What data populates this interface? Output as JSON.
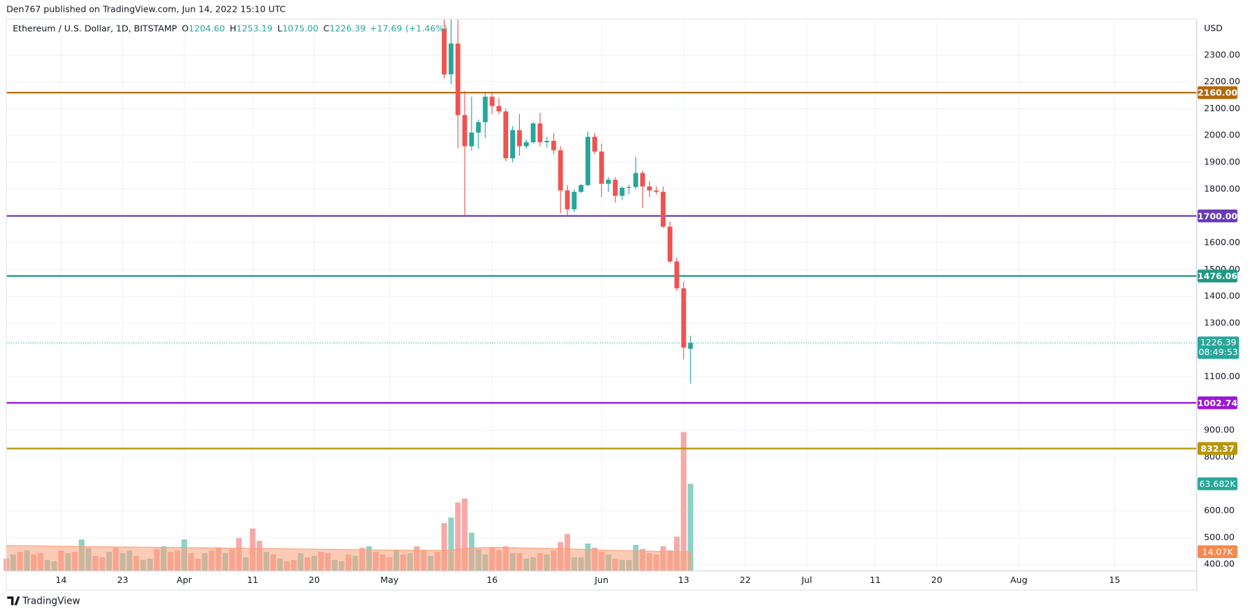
{
  "header": {
    "text": "Den767 published on TradingView.com, Jun 14, 2022 15:10 UTC"
  },
  "chart_data": {
    "type": "candlestick",
    "legend": {
      "symbol": "Ethereum / U.S. Dollar, 1D, BITSTAMP",
      "ohlc_letters": [
        "O",
        "H",
        "L",
        "C"
      ],
      "ohlc": [
        {
          "value": 1204.6,
          "label": "1204.60"
        },
        {
          "value": 1253.19,
          "label": "1253.19"
        },
        {
          "value": 1075,
          "label": "1075.00"
        },
        {
          "value": 1226.39,
          "label": "1226.39"
        }
      ],
      "change": {
        "value": 17.69,
        "label": "+17.69"
      },
      "change_pct": {
        "value": 1.46,
        "label": "(+1.46%)"
      }
    },
    "currency": "USD",
    "up_color": "#26a69a",
    "down_color": "#ef5350",
    "x": [
      "2022-03-06",
      "2022-03-07",
      "2022-03-08",
      "2022-03-09",
      "2022-03-10",
      "2022-03-11",
      "2022-03-12",
      "2022-03-13",
      "2022-03-14",
      "2022-03-15",
      "2022-03-16",
      "2022-03-17",
      "2022-03-18",
      "2022-03-19",
      "2022-03-20",
      "2022-03-21",
      "2022-03-22",
      "2022-03-23",
      "2022-03-24",
      "2022-03-25",
      "2022-03-26",
      "2022-03-27",
      "2022-03-28",
      "2022-03-29",
      "2022-03-30",
      "2022-03-31",
      "2022-04-01",
      "2022-04-02",
      "2022-04-03",
      "2022-04-04",
      "2022-04-05",
      "2022-04-06",
      "2022-04-07",
      "2022-04-08",
      "2022-04-09",
      "2022-04-10",
      "2022-04-11",
      "2022-04-12",
      "2022-04-13",
      "2022-04-14",
      "2022-04-15",
      "2022-04-16",
      "2022-04-17",
      "2022-04-18",
      "2022-04-19",
      "2022-04-20",
      "2022-04-21",
      "2022-04-22",
      "2022-04-23",
      "2022-04-24",
      "2022-04-25",
      "2022-04-26",
      "2022-04-27",
      "2022-04-28",
      "2022-04-29",
      "2022-04-30",
      "2022-05-01",
      "2022-05-02",
      "2022-05-03",
      "2022-05-04",
      "2022-05-05",
      "2022-05-06",
      "2022-05-07",
      "2022-05-08",
      "2022-05-09",
      "2022-05-10",
      "2022-05-11",
      "2022-05-12",
      "2022-05-13",
      "2022-05-14",
      "2022-05-15",
      "2022-05-16",
      "2022-05-17",
      "2022-05-18",
      "2022-05-19",
      "2022-05-20",
      "2022-05-21",
      "2022-05-22",
      "2022-05-23",
      "2022-05-24",
      "2022-05-25",
      "2022-05-26",
      "2022-05-27",
      "2022-05-28",
      "2022-05-29",
      "2022-05-30",
      "2022-05-31",
      "2022-06-01",
      "2022-06-02",
      "2022-06-03",
      "2022-06-04",
      "2022-06-05",
      "2022-06-06",
      "2022-06-07",
      "2022-06-08",
      "2022-06-09",
      "2022-06-10",
      "2022-06-11",
      "2022-06-12",
      "2022-06-13",
      "2022-06-14"
    ],
    "open": [
      null,
      null,
      null,
      null,
      null,
      null,
      null,
      null,
      null,
      null,
      null,
      null,
      null,
      null,
      null,
      null,
      null,
      null,
      null,
      null,
      null,
      null,
      null,
      null,
      null,
      null,
      null,
      null,
      null,
      null,
      null,
      null,
      null,
      null,
      null,
      null,
      null,
      null,
      null,
      null,
      null,
      null,
      null,
      null,
      null,
      null,
      null,
      null,
      null,
      null,
      null,
      null,
      null,
      null,
      null,
      null,
      null,
      null,
      null,
      null,
      null,
      null,
      null,
      null,
      2398,
      2228,
      2343,
      2076,
      1960,
      2011,
      2050,
      2145,
      2110,
      2090,
      1915,
      2020,
      1960,
      1975,
      2045,
      1975,
      1980,
      1945,
      1795,
      1725,
      1790,
      1815,
      1995,
      1940,
      1820,
      1835,
      1775,
      1805,
      1808,
      1860,
      1810,
      1795,
      1790,
      1660,
      1530,
      1430,
      1204.6
    ],
    "high": [
      null,
      null,
      null,
      null,
      null,
      null,
      null,
      null,
      null,
      null,
      null,
      null,
      null,
      null,
      null,
      null,
      null,
      null,
      null,
      null,
      null,
      null,
      null,
      null,
      null,
      null,
      null,
      null,
      null,
      null,
      null,
      null,
      null,
      null,
      null,
      null,
      null,
      null,
      null,
      null,
      null,
      null,
      null,
      null,
      null,
      null,
      null,
      null,
      null,
      null,
      null,
      null,
      null,
      null,
      null,
      null,
      null,
      null,
      null,
      null,
      null,
      null,
      null,
      null,
      2463,
      2456,
      2449,
      2166,
      2145,
      2060,
      2160,
      2160,
      2140,
      2100,
      2035,
      2080,
      1985,
      2050,
      2085,
      1995,
      2010,
      1960,
      1815,
      1800,
      1820,
      2015,
      2010,
      1970,
      1845,
      1845,
      1810,
      1815,
      1920,
      1870,
      1830,
      1810,
      1810,
      1680,
      1545,
      1455,
      1253.19
    ],
    "low": [
      null,
      null,
      null,
      null,
      null,
      null,
      null,
      null,
      null,
      null,
      null,
      null,
      null,
      null,
      null,
      null,
      null,
      null,
      null,
      null,
      null,
      null,
      null,
      null,
      null,
      null,
      null,
      null,
      null,
      null,
      null,
      null,
      null,
      null,
      null,
      null,
      null,
      null,
      null,
      null,
      null,
      null,
      null,
      null,
      null,
      null,
      null,
      null,
      null,
      null,
      null,
      null,
      null,
      null,
      null,
      null,
      null,
      null,
      null,
      null,
      null,
      null,
      null,
      null,
      2213,
      2190,
      1952,
      1701,
      1944,
      1950,
      1990,
      2080,
      2080,
      1905,
      1900,
      1925,
      1950,
      1970,
      1960,
      1955,
      1930,
      1710,
      1700,
      1715,
      1785,
      1810,
      1930,
      1770,
      1790,
      1750,
      1760,
      1780,
      1800,
      1730,
      1770,
      1780,
      1655,
      1525,
      1420,
      1165,
      1075
    ],
    "close": [
      null,
      null,
      null,
      null,
      null,
      null,
      null,
      null,
      null,
      null,
      null,
      null,
      null,
      null,
      null,
      null,
      null,
      null,
      null,
      null,
      null,
      null,
      null,
      null,
      null,
      null,
      null,
      null,
      null,
      null,
      null,
      null,
      null,
      null,
      null,
      null,
      null,
      null,
      null,
      null,
      null,
      null,
      null,
      null,
      null,
      null,
      null,
      null,
      null,
      null,
      null,
      null,
      null,
      null,
      null,
      null,
      null,
      null,
      null,
      null,
      null,
      null,
      null,
      null,
      2228,
      2343,
      2076,
      1960,
      2011,
      2050,
      2145,
      2110,
      2090,
      1915,
      2020,
      1960,
      1975,
      2045,
      1975,
      1980,
      1945,
      1795,
      1725,
      1790,
      1815,
      1995,
      1940,
      1820,
      1835,
      1775,
      1805,
      1808,
      1860,
      1810,
      1795,
      1790,
      1660,
      1530,
      1430,
      1208.71,
      1226.39
    ],
    "volume": {
      "values": [
        9,
        12,
        14,
        15,
        12,
        13,
        8,
        7,
        15,
        13,
        14,
        23,
        17,
        11,
        10,
        14,
        17,
        13,
        15,
        11,
        8,
        9,
        16,
        18,
        14,
        15,
        23,
        13,
        9,
        13,
        15,
        17,
        13,
        16,
        24,
        10,
        31,
        22,
        14,
        12,
        9,
        7,
        8,
        13,
        10,
        11,
        14,
        13,
        8,
        7,
        12,
        11,
        17,
        18,
        14,
        12,
        10,
        15,
        12,
        13,
        18,
        15,
        11,
        14,
        35,
        39,
        50,
        53,
        28,
        16,
        12,
        17,
        15,
        18,
        13,
        13,
        9,
        10,
        13,
        12,
        15,
        21,
        27,
        10,
        10,
        20,
        17,
        14,
        12,
        9,
        8,
        8,
        19,
        16,
        13,
        12,
        18,
        15,
        25,
        101.6,
        63.682
      ],
      "colors": [
        "#f7a9a8",
        "#8fd1c6",
        "#f7a9a8",
        "#8fd1c6",
        "#f7a9a8",
        "#f7a9a8",
        "#8fd1c6",
        "#8fd1c6",
        "#f7a9a8",
        "#8fd1c6",
        "#f7a9a8",
        "#8fd1c6",
        "#8fd1c6",
        "#f7a9a8",
        "#f7a9a8",
        "#8fd1c6",
        "#f7a9a8",
        "#8fd1c6",
        "#8fd1c6",
        "#f7a9a8",
        "#8fd1c6",
        "#8fd1c6",
        "#f7a9a8",
        "#8fd1c6",
        "#f7a9a8",
        "#f7a9a8",
        "#8fd1c6",
        "#f7a9a8",
        "#f7a9a8",
        "#8fd1c6",
        "#f7a9a8",
        "#f7a9a8",
        "#8fd1c6",
        "#f7a9a8",
        "#f7a9a8",
        "#8fd1c6",
        "#f7a9a8",
        "#f7a9a8",
        "#8fd1c6",
        "#f7a9a8",
        "#8fd1c6",
        "#f7a9a8",
        "#f7a9a8",
        "#8fd1c6",
        "#f7a9a8",
        "#8fd1c6",
        "#f7a9a8",
        "#f7a9a8",
        "#8fd1c6",
        "#8fd1c6",
        "#f7a9a8",
        "#8fd1c6",
        "#f7a9a8",
        "#8fd1c6",
        "#f7a9a8",
        "#f7a9a8",
        "#f7a9a8",
        "#8fd1c6",
        "#f7a9a8",
        "#8fd1c6",
        "#f7a9a8",
        "#f7a9a8",
        "#8fd1c6",
        "#f7a9a8",
        "#f7a9a8",
        "#8fd1c6",
        "#f7a9a8",
        "#f7a9a8",
        "#8fd1c6",
        "#8fd1c6",
        "#8fd1c6",
        "#f7a9a8",
        "#f7a9a8",
        "#f7a9a8",
        "#8fd1c6",
        "#f7a9a8",
        "#8fd1c6",
        "#8fd1c6",
        "#f7a9a8",
        "#8fd1c6",
        "#f7a9a8",
        "#f7a9a8",
        "#f7a9a8",
        "#8fd1c6",
        "#8fd1c6",
        "#8fd1c6",
        "#f7a9a8",
        "#f7a9a8",
        "#8fd1c6",
        "#f7a9a8",
        "#8fd1c6",
        "#8fd1c6",
        "#8fd1c6",
        "#f7a9a8",
        "#f7a9a8",
        "#f7a9a8",
        "#f7a9a8",
        "#f7a9a8",
        "#f7a9a8",
        "#f7a9a8",
        "#8fd1c6"
      ]
    },
    "volume_ma": {
      "color": "#f9a07a",
      "values": [
        18.6,
        18.5,
        18.5,
        18.4,
        18.3,
        18.3,
        18.2,
        18.1,
        18.0,
        18.0,
        17.9,
        17.9,
        17.8,
        17.7,
        17.7,
        17.6,
        17.5,
        17.5,
        17.4,
        17.4,
        17.3,
        17.3,
        17.2,
        17.2,
        17.1,
        17.1,
        17.0,
        17.0,
        16.9,
        16.9,
        16.8,
        16.8,
        16.7,
        16.6,
        16.6,
        16.5,
        16.5,
        16.4,
        16.3,
        16.3,
        16.2,
        16.1,
        16.1,
        16.0,
        15.9,
        15.9,
        15.8,
        15.7,
        15.7,
        15.6,
        15.5,
        15.5,
        15.4,
        15.4,
        15.3,
        15.3,
        15.2,
        15.2,
        15.2,
        15.1,
        15.1,
        15.1,
        15.0,
        15.0,
        15.1,
        15.4,
        15.8,
        16.3,
        16.7,
        16.9,
        17.0,
        17.1,
        17.1,
        17.0,
        16.9,
        16.8,
        16.7,
        16.6,
        16.6,
        16.5,
        16.4,
        16.3,
        16.2,
        16.0,
        15.8,
        15.6,
        15.4,
        15.2,
        15.0,
        14.9,
        14.8,
        14.7,
        14.6,
        14.5,
        14.4,
        14.3,
        14.2,
        14.2,
        14.1,
        14.1,
        14.07
      ]
    },
    "volume_last": {
      "value": 63.682,
      "label": "63.682K",
      "color": "#26a69a"
    },
    "volume_ma_last": {
      "value": 14.07,
      "label": "14.07K",
      "color": "#f7894d"
    },
    "volume_ylim": [
      0,
      403.6
    ],
    "xlim": [
      "2022-03-06",
      "2022-08-27"
    ],
    "xticks": [
      {
        "value": "2022-03-14",
        "label": "14"
      },
      {
        "value": "2022-03-23",
        "label": "23"
      },
      {
        "value": "2022-04-01",
        "label": "Apr"
      },
      {
        "value": "2022-04-11",
        "label": "11"
      },
      {
        "value": "2022-04-20",
        "label": "20"
      },
      {
        "value": "2022-05-01",
        "label": "May"
      },
      {
        "value": "2022-05-16",
        "label": "16"
      },
      {
        "value": "2022-06-01",
        "label": "Jun"
      },
      {
        "value": "2022-06-13",
        "label": "13"
      },
      {
        "value": "2022-06-22",
        "label": "22"
      },
      {
        "value": "2022-07-01",
        "label": "Jul"
      },
      {
        "value": "2022-07-11",
        "label": "11"
      },
      {
        "value": "2022-07-20",
        "label": "20"
      },
      {
        "value": "2022-08-01",
        "label": "Aug"
      },
      {
        "value": "2022-08-15",
        "label": "15"
      }
    ],
    "ylim": [
      376,
      2434
    ],
    "yticks": [
      {
        "value": 2300,
        "label": "2300.00"
      },
      {
        "value": 2200,
        "label": "2200.00"
      },
      {
        "value": 2100,
        "label": "2100.00"
      },
      {
        "value": 2000,
        "label": "2000.00"
      },
      {
        "value": 1900,
        "label": "1900.00"
      },
      {
        "value": 1800,
        "label": "1800.00"
      },
      {
        "value": 1600,
        "label": "1600.00"
      },
      {
        "value": 1500,
        "label": "1500.00"
      },
      {
        "value": 1400,
        "label": "1400.00"
      },
      {
        "value": 1300,
        "label": "1300.00"
      },
      {
        "value": 1100,
        "label": "1100.00"
      },
      {
        "value": 900,
        "label": "900.00"
      },
      {
        "value": 800,
        "label": "800.00"
      },
      {
        "value": 600,
        "label": "600.00"
      },
      {
        "value": 500,
        "label": "500.00"
      },
      {
        "value": 400,
        "label": "400.00"
      }
    ],
    "grid": true,
    "levels": [
      {
        "value": 2160,
        "label": "2160.00",
        "color": "#b36a0c"
      },
      {
        "value": 1700,
        "label": "1700.00",
        "color": "#673ab7"
      },
      {
        "value": 1476.06,
        "label": "1476.06",
        "color": "#1e9985"
      },
      {
        "value": 1002.74,
        "label": "1002.74",
        "color": "#9c16d6"
      },
      {
        "value": 832.37,
        "label": "832.37",
        "color": "#b8960c"
      }
    ],
    "last_price": {
      "value": 1226.39,
      "label": "1226.39",
      "countdown": "08:49:53",
      "color": "#26a69a"
    }
  },
  "footer": {
    "brand": "TradingView"
  }
}
